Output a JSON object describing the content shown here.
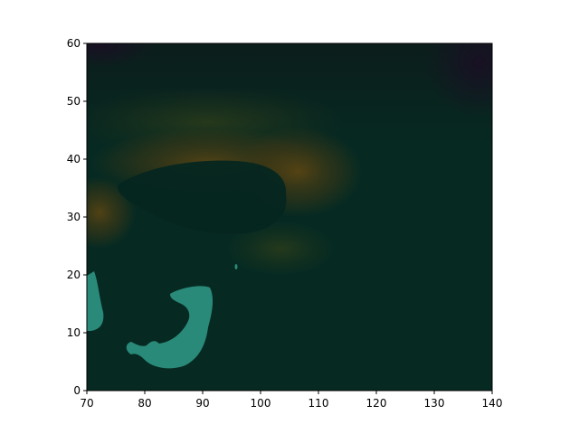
{
  "chart_data": {
    "type": "heatmap",
    "title": "",
    "xlabel": "",
    "ylabel": "",
    "xlim": [
      70,
      140
    ],
    "ylim": [
      0,
      60
    ],
    "x_ticks": [
      "70",
      "80",
      "90",
      "100",
      "110",
      "120",
      "130",
      "140"
    ],
    "y_ticks": [
      "0",
      "10",
      "20",
      "30",
      "40",
      "50",
      "60"
    ],
    "grid": false,
    "legend": "none",
    "colors": {
      "base": "#062a22",
      "dark_corner": "#1a0f24",
      "warm_region": "#4a3a12",
      "olive_region": "#2c3a18",
      "teal_patch": "#2a8a7a",
      "frame": "#000000"
    },
    "regions": [
      {
        "name": "background-field",
        "x": [
          70,
          140
        ],
        "y": [
          0,
          60
        ]
      },
      {
        "name": "warm-band-40N",
        "x": [
          75,
          110
        ],
        "y": [
          37,
          43
        ]
      },
      {
        "name": "warm-band-30N",
        "x": [
          70,
          75
        ],
        "y": [
          27,
          35
        ]
      },
      {
        "name": "dark-plateau",
        "x": [
          80,
          104
        ],
        "y": [
          29,
          40
        ]
      },
      {
        "name": "teal-patch-arabian",
        "x": [
          70,
          73
        ],
        "y": [
          10,
          20
        ]
      },
      {
        "name": "teal-patch-indian",
        "x": [
          77,
          92
        ],
        "y": [
          4,
          18
        ]
      }
    ]
  }
}
